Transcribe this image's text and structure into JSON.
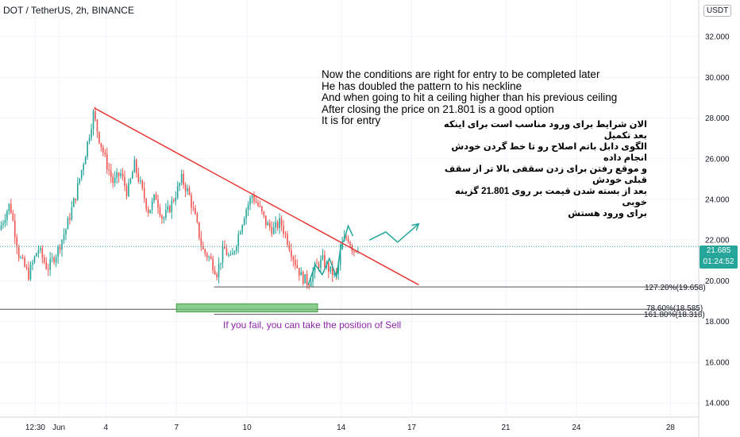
{
  "header": {
    "symbol_title": "DOT / TetherUS, 2h, BINANCE",
    "currency_label": "USDT"
  },
  "price_label": {
    "price": "21.685",
    "countdown": "01:24:52",
    "color": "#26a69a"
  },
  "annotations": {
    "english_lines": [
      "Now the conditions are right for entry to be completed later",
      "He has doubled the pattern to his neckline",
      "And when going to hit a ceiling higher than his previous ceiling",
      "After closing the price on 21.801 is a good option",
      "It is for entry"
    ],
    "persian_lines": [
      "الان شرایط برای ورود مناسب است برای اینکه بعد تکمیل",
      "الگوی دابل باتم اصلاح رو تا خط گردن خودش انجام داده",
      "و موقع رفتن برای زدن سقفی بالا تر از سقف قبلی خودش",
      "بعد از بسته شدن قیمت بر روی 21.801 گزینه خوبی",
      "برای ورود هستش"
    ],
    "sell_note": "If you fail, you can take the position of Sell"
  },
  "fib_levels": [
    {
      "label": "127.20%(19.658)",
      "price": 19.658
    },
    {
      "label": "78.60%(18.585)",
      "price": 18.585
    },
    {
      "label": "161.80%(18.318)",
      "price": 18.318
    }
  ],
  "chart_data": {
    "type": "candlestick",
    "title": "DOT / TetherUS, 2h, BINANCE",
    "y_ticks": [
      "32.000",
      "30.000",
      "28.000",
      "26.000",
      "24.000",
      "22.000",
      "20.000",
      "18.000",
      "16.000",
      "14.000"
    ],
    "y_tick_values": [
      32,
      30,
      28,
      26,
      24,
      22,
      20,
      18,
      16,
      14
    ],
    "ylim": [
      13.3,
      33.8
    ],
    "x_ticks": [
      "12:30",
      "Jun",
      "4",
      "7",
      "10",
      "14",
      "17",
      "21",
      "24",
      "28"
    ],
    "x_tick_days": [
      1.0,
      2.0,
      4.0,
      7.0,
      10.0,
      14.0,
      17.0,
      21.0,
      24.0,
      28.0
    ],
    "x_range_days": [
      -0.5,
      29.2
    ],
    "up_color": "#26a69a",
    "down_color": "#ef5350",
    "waypoints": [
      {
        "d": -0.45,
        "p": 22.5
      },
      {
        "d": 0.0,
        "p": 23.8
      },
      {
        "d": 0.4,
        "p": 21.2
      },
      {
        "d": 0.8,
        "p": 20.3
      },
      {
        "d": 1.2,
        "p": 21.6
      },
      {
        "d": 1.6,
        "p": 20.6
      },
      {
        "d": 2.0,
        "p": 21.4
      },
      {
        "d": 2.4,
        "p": 22.6
      },
      {
        "d": 2.8,
        "p": 24.2
      },
      {
        "d": 3.2,
        "p": 26.2
      },
      {
        "d": 3.55,
        "p": 28.2
      },
      {
        "d": 3.8,
        "p": 27.0
      },
      {
        "d": 4.1,
        "p": 25.8
      },
      {
        "d": 4.4,
        "p": 24.8
      },
      {
        "d": 4.7,
        "p": 25.3
      },
      {
        "d": 5.0,
        "p": 24.3
      },
      {
        "d": 5.3,
        "p": 25.7
      },
      {
        "d": 5.6,
        "p": 24.5
      },
      {
        "d": 5.9,
        "p": 23.4
      },
      {
        "d": 6.2,
        "p": 24.2
      },
      {
        "d": 6.5,
        "p": 23.0
      },
      {
        "d": 6.8,
        "p": 23.6
      },
      {
        "d": 7.1,
        "p": 24.4
      },
      {
        "d": 7.3,
        "p": 25.0
      },
      {
        "d": 7.6,
        "p": 24.3
      },
      {
        "d": 7.9,
        "p": 23.0
      },
      {
        "d": 8.2,
        "p": 21.5
      },
      {
        "d": 8.5,
        "p": 21.1
      },
      {
        "d": 8.8,
        "p": 20.4
      },
      {
        "d": 9.1,
        "p": 21.6
      },
      {
        "d": 9.4,
        "p": 21.0
      },
      {
        "d": 9.7,
        "p": 22.2
      },
      {
        "d": 10.0,
        "p": 23.4
      },
      {
        "d": 10.3,
        "p": 24.2
      },
      {
        "d": 10.6,
        "p": 23.6
      },
      {
        "d": 10.9,
        "p": 22.8
      },
      {
        "d": 11.2,
        "p": 22.5
      },
      {
        "d": 11.5,
        "p": 22.9
      },
      {
        "d": 11.8,
        "p": 22.0
      },
      {
        "d": 12.1,
        "p": 21.0
      },
      {
        "d": 12.4,
        "p": 20.2
      },
      {
        "d": 12.7,
        "p": 19.9
      },
      {
        "d": 13.0,
        "p": 20.7
      },
      {
        "d": 13.3,
        "p": 21.0
      },
      {
        "d": 13.6,
        "p": 20.5
      },
      {
        "d": 13.9,
        "p": 20.2
      },
      {
        "d": 14.1,
        "p": 21.8
      },
      {
        "d": 14.35,
        "p": 22.2
      },
      {
        "d": 14.6,
        "p": 21.5
      },
      {
        "d": 14.8,
        "p": 21.685
      }
    ]
  },
  "drawings": {
    "trendline": {
      "from": {
        "d": 3.5,
        "p": 28.5
      },
      "to": {
        "d": 17.3,
        "p": 19.8
      },
      "color": "#e53935"
    },
    "neckline": {
      "from": {
        "d": 8.6,
        "p": 19.7
      },
      "to": {
        "d": 29.2,
        "p": 19.7
      },
      "color": "#555555"
    },
    "fib_line_1": {
      "from": {
        "d": -0.5,
        "p": 18.6
      },
      "to": {
        "d": 29.2,
        "p": 18.6
      },
      "color": "#555555"
    },
    "fib_line_2": {
      "from": {
        "d": 8.6,
        "p": 18.35
      },
      "to": {
        "d": 29.2,
        "p": 18.35
      },
      "color": "#555555"
    },
    "entry_zone": {
      "d1": 7.0,
      "d2": 13.0,
      "p1": 18.87,
      "p2": 18.47,
      "color": "#66bb6a"
    },
    "double_bottom_path": [
      {
        "d": 12.6,
        "p": 19.8
      },
      {
        "d": 12.9,
        "p": 20.8
      },
      {
        "d": 13.2,
        "p": 20.3
      },
      {
        "d": 13.5,
        "p": 21.1
      },
      {
        "d": 13.8,
        "p": 20.2
      },
      {
        "d": 14.0,
        "p": 21.8
      }
    ],
    "arrow_up_small": [
      {
        "d": 14.1,
        "p": 21.9
      },
      {
        "d": 14.3,
        "p": 22.7
      },
      {
        "d": 14.5,
        "p": 22.2
      }
    ],
    "projection_path": [
      {
        "d": 15.2,
        "p": 22.0
      },
      {
        "d": 15.9,
        "p": 22.4
      },
      {
        "d": 16.4,
        "p": 21.9
      },
      {
        "d": 17.3,
        "p": 22.8
      }
    ],
    "path_color": "#26a69a"
  }
}
